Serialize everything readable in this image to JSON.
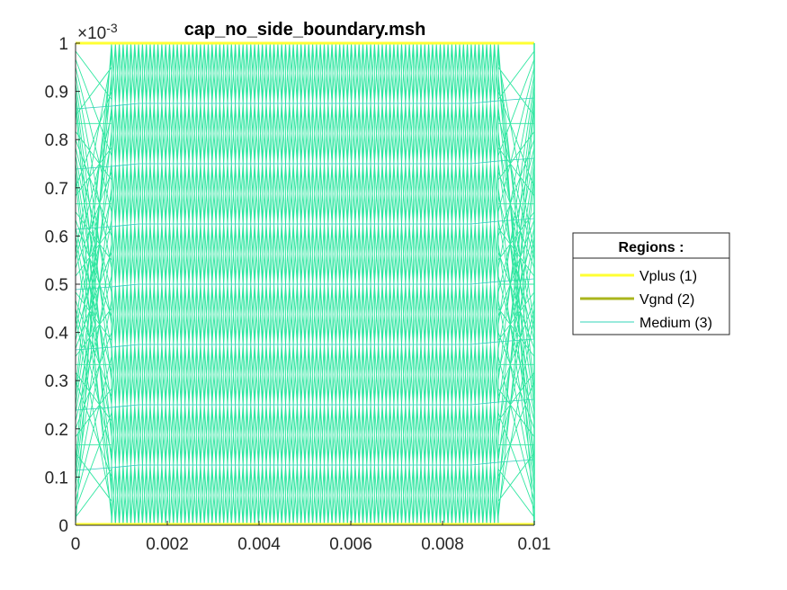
{
  "chart_data": {
    "type": "line",
    "title": "cap_no_side_boundary.msh",
    "xlabel": "",
    "ylabel": "",
    "xlim": [
      0,
      0.01
    ],
    "ylim": [
      0,
      0.001
    ],
    "y_exponent_label": "×10",
    "y_exponent_power": "-3",
    "xticks": [
      "0",
      "0.002",
      "0.004",
      "0.006",
      "0.008",
      "0.01"
    ],
    "xtick_values": [
      0,
      0.002,
      0.004,
      0.006,
      0.008,
      0.01
    ],
    "yticks": [
      "0",
      "0.1",
      "0.2",
      "0.3",
      "0.4",
      "0.5",
      "0.6",
      "0.7",
      "0.8",
      "0.9",
      "1"
    ],
    "ytick_values": [
      0,
      0.0001,
      0.0002,
      0.0003,
      0.0004,
      0.0005,
      0.0006,
      0.0007,
      0.0008,
      0.0009,
      0.001
    ],
    "grid": false,
    "legend": {
      "title": "Regions :",
      "placement": "outside-right",
      "entries": [
        {
          "name": "Vplus (1)",
          "color": "#ffff33"
        },
        {
          "name": "Vgnd (2)",
          "color": "#a9b51c"
        },
        {
          "name": "Medium (3)",
          "color": "#33d5b9"
        }
      ]
    },
    "series": [
      {
        "name": "Vplus (1)",
        "color": "#ffff33",
        "x": [
          0,
          0.01
        ],
        "y": [
          0.001,
          0.001
        ]
      },
      {
        "name": "Vgnd (2)",
        "color": "#a9b51c",
        "x": [
          0,
          0.01
        ],
        "y": [
          0,
          0
        ]
      },
      {
        "name": "Medium (3)",
        "color": "#33d5b9",
        "mesh_rows_y": [
          0,
          0.000125,
          0.00025,
          0.000375,
          0.0005,
          0.000625,
          0.00075,
          0.000875,
          0.001
        ],
        "mesh_columns": 100,
        "x_range": [
          0,
          0.01
        ]
      }
    ]
  },
  "colors": {
    "mesh": "#2ee6a0",
    "mesh_dark": "#33c8c0",
    "axis": "#262626"
  }
}
